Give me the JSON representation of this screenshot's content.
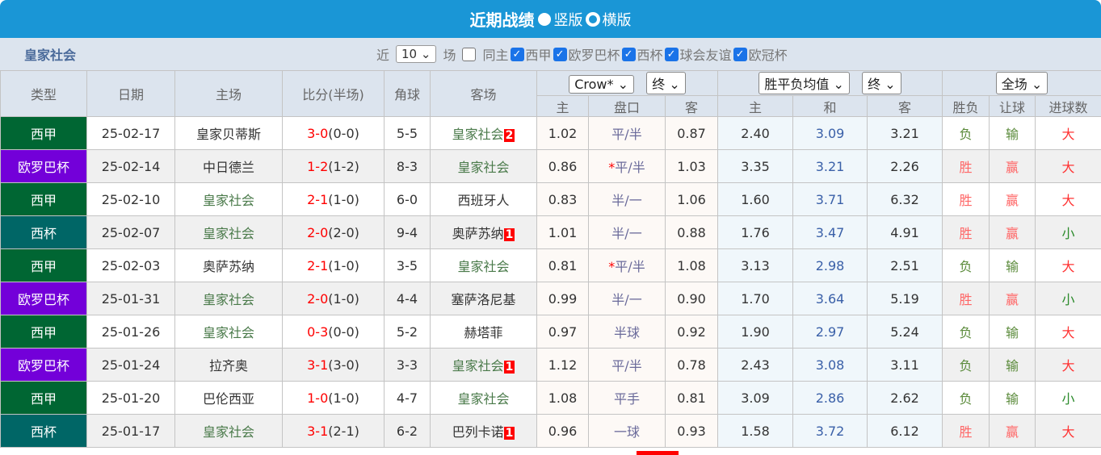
{
  "header": {
    "title": "近期战绩",
    "opt_vertical": "竖版",
    "opt_horizontal": "横版"
  },
  "filter": {
    "team": "皇家社会",
    "near": "近",
    "count": "10",
    "unit": "场",
    "same_home": "同主",
    "leagues": [
      "西甲",
      "欧罗巴杯",
      "西杯",
      "球会友谊",
      "欧冠杯"
    ]
  },
  "columns": {
    "type": "类型",
    "date": "日期",
    "home": "主场",
    "score": "比分(半场)",
    "corner": "角球",
    "away": "客场",
    "company": "Crow*",
    "odds_stage": "终",
    "avg": "胜平负均值",
    "avg_stage": "终",
    "period": "全场",
    "h": "主",
    "line": "盘口",
    "a": "客",
    "h2": "主",
    "d": "和",
    "a2": "客",
    "wl": "胜负",
    "hc": "让球",
    "ou": "进球数"
  },
  "colors": {
    "西甲": "#006633",
    "欧罗巴杯": "#7300d9",
    "西杯": "#006666"
  },
  "rows": [
    {
      "type": "西甲",
      "date": "25-02-17",
      "home": "皇家贝蒂斯",
      "score": "3-0",
      "half": "(0-0)",
      "corner": "5-5",
      "away": "皇家社会",
      "red": "2",
      "h": "1.02",
      "star": "",
      "line": "平/半",
      "a": "0.87",
      "w": "2.40",
      "d": "3.09",
      "l": "3.21",
      "wl": "负",
      "hc": "输",
      "ou": "大"
    },
    {
      "type": "欧罗巴杯",
      "date": "25-02-14",
      "home": "中日德兰",
      "score": "1-2",
      "half": "(1-2)",
      "corner": "8-3",
      "away": "皇家社会",
      "red": "",
      "h": "0.86",
      "star": "*",
      "line": "平/半",
      "a": "1.03",
      "w": "3.35",
      "d": "3.21",
      "l": "2.26",
      "wl": "胜",
      "hc": "赢",
      "ou": "大"
    },
    {
      "type": "西甲",
      "date": "25-02-10",
      "home": "皇家社会",
      "score": "2-1",
      "half": "(1-0)",
      "corner": "6-0",
      "away": "西班牙人",
      "red": "",
      "h": "0.83",
      "star": "",
      "line": "半/一",
      "a": "1.06",
      "w": "1.60",
      "d": "3.71",
      "l": "6.32",
      "wl": "胜",
      "hc": "赢",
      "ou": "大"
    },
    {
      "type": "西杯",
      "date": "25-02-07",
      "home": "皇家社会",
      "score": "2-0",
      "half": "(2-0)",
      "corner": "9-4",
      "away": "奥萨苏纳",
      "red": "1",
      "h": "1.01",
      "star": "",
      "line": "半/一",
      "a": "0.88",
      "w": "1.76",
      "d": "3.47",
      "l": "4.91",
      "wl": "胜",
      "hc": "赢",
      "ou": "小"
    },
    {
      "type": "西甲",
      "date": "25-02-03",
      "home": "奥萨苏纳",
      "score": "2-1",
      "half": "(1-0)",
      "corner": "3-5",
      "away": "皇家社会",
      "red": "",
      "h": "0.81",
      "star": "*",
      "line": "平/半",
      "a": "1.08",
      "w": "3.13",
      "d": "2.98",
      "l": "2.51",
      "wl": "负",
      "hc": "输",
      "ou": "大"
    },
    {
      "type": "欧罗巴杯",
      "date": "25-01-31",
      "home": "皇家社会",
      "score": "2-0",
      "half": "(1-0)",
      "corner": "4-4",
      "away": "塞萨洛尼基",
      "red": "",
      "h": "0.99",
      "star": "",
      "line": "半/一",
      "a": "0.90",
      "w": "1.70",
      "d": "3.64",
      "l": "5.19",
      "wl": "胜",
      "hc": "赢",
      "ou": "小"
    },
    {
      "type": "西甲",
      "date": "25-01-26",
      "home": "皇家社会",
      "score": "0-3",
      "half": "(0-0)",
      "corner": "5-2",
      "away": "赫塔菲",
      "red": "",
      "h": "0.97",
      "star": "",
      "line": "半球",
      "a": "0.92",
      "w": "1.90",
      "d": "2.97",
      "l": "5.24",
      "wl": "负",
      "hc": "输",
      "ou": "大"
    },
    {
      "type": "欧罗巴杯",
      "date": "25-01-24",
      "home": "拉齐奥",
      "score": "3-1",
      "half": "(3-0)",
      "corner": "3-3",
      "away": "皇家社会",
      "red": "1",
      "h": "1.12",
      "star": "",
      "line": "平/半",
      "a": "0.78",
      "w": "2.43",
      "d": "3.08",
      "l": "3.11",
      "wl": "负",
      "hc": "输",
      "ou": "大"
    },
    {
      "type": "西甲",
      "date": "25-01-20",
      "home": "巴伦西亚",
      "score": "1-0",
      "half": "(1-0)",
      "corner": "4-7",
      "away": "皇家社会",
      "red": "",
      "h": "1.08",
      "star": "",
      "line": "平手",
      "a": "0.81",
      "w": "3.09",
      "d": "2.86",
      "l": "2.62",
      "wl": "负",
      "hc": "输",
      "ou": "小"
    },
    {
      "type": "西杯",
      "date": "25-01-17",
      "home": "皇家社会",
      "score": "3-1",
      "half": "(2-1)",
      "corner": "6-2",
      "away": "巴列卡诺",
      "red": "1",
      "h": "0.96",
      "star": "",
      "line": "一球",
      "a": "0.93",
      "w": "1.58",
      "d": "3.72",
      "l": "6.12",
      "wl": "胜",
      "hc": "赢",
      "ou": "大"
    }
  ]
}
